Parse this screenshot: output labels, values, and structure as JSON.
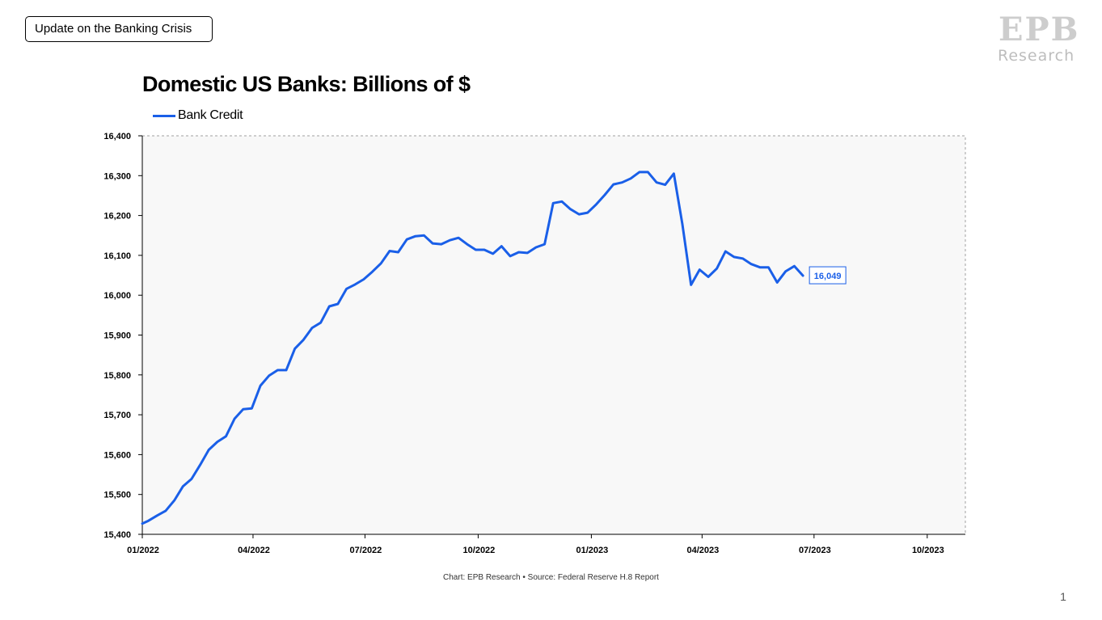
{
  "slide": {
    "deck_tag": "Update on the Banking Crisis",
    "logo_letters": [
      "E",
      "P",
      "B"
    ],
    "logo_word": "Research",
    "page_number": "1",
    "source_note": "Chart: EPB Research •  Source: Federal Reserve H.8 Report"
  },
  "colors": {
    "series": "#1a5fe8",
    "plot_background": "#f8f8f8",
    "logo": "#cdcdcd"
  },
  "chart_data": {
    "type": "line",
    "title": "Domestic US Banks: Billions of $",
    "xlabel": "",
    "ylabel": "",
    "ylim": [
      15400,
      16400
    ],
    "yticks": [
      15400,
      15500,
      15600,
      15700,
      15800,
      15900,
      16000,
      16100,
      16200,
      16300,
      16400
    ],
    "ytick_labels": [
      "15,400",
      "15,500",
      "15,600",
      "15,700",
      "15,800",
      "15,900",
      "16,000",
      "16,100",
      "16,200",
      "16,300",
      "16,400"
    ],
    "xlim": [
      "2022-01-01",
      "2023-11-01"
    ],
    "xticks": [
      "2022-01-01",
      "2022-04-01",
      "2022-07-01",
      "2022-10-01",
      "2023-01-01",
      "2023-04-01",
      "2023-07-01",
      "2023-10-01"
    ],
    "xtick_labels": [
      "01/2022",
      "04/2022",
      "07/2022",
      "10/2022",
      "01/2023",
      "04/2023",
      "07/2023",
      "10/2023"
    ],
    "grid": false,
    "legend_position": "top-left",
    "series": [
      {
        "name": "Bank Credit",
        "color": "#1a5fe8",
        "end_label": "16,049",
        "points": [
          [
            "2022-01-01",
            15427
          ],
          [
            "2022-01-06",
            15434
          ],
          [
            "2022-01-13",
            15447
          ],
          [
            "2022-01-20",
            15459
          ],
          [
            "2022-01-27",
            15485
          ],
          [
            "2022-02-03",
            15520
          ],
          [
            "2022-02-10",
            15539
          ],
          [
            "2022-02-17",
            15574
          ],
          [
            "2022-02-24",
            15612
          ],
          [
            "2022-03-03",
            15632
          ],
          [
            "2022-03-10",
            15646
          ],
          [
            "2022-03-17",
            15690
          ],
          [
            "2022-03-24",
            15714
          ],
          [
            "2022-03-31",
            15716
          ],
          [
            "2022-04-07",
            15773
          ],
          [
            "2022-04-14",
            15798
          ],
          [
            "2022-04-21",
            15812
          ],
          [
            "2022-04-28",
            15812
          ],
          [
            "2022-05-05",
            15866
          ],
          [
            "2022-05-12",
            15888
          ],
          [
            "2022-05-19",
            15918
          ],
          [
            "2022-05-26",
            15931
          ],
          [
            "2022-06-02",
            15972
          ],
          [
            "2022-06-09",
            15978
          ],
          [
            "2022-06-16",
            16016
          ],
          [
            "2022-06-23",
            16027
          ],
          [
            "2022-06-30",
            16040
          ],
          [
            "2022-07-07",
            16059
          ],
          [
            "2022-07-14",
            16080
          ],
          [
            "2022-07-21",
            16111
          ],
          [
            "2022-07-28",
            16108
          ],
          [
            "2022-08-04",
            16140
          ],
          [
            "2022-08-11",
            16148
          ],
          [
            "2022-08-18",
            16150
          ],
          [
            "2022-08-25",
            16130
          ],
          [
            "2022-09-01",
            16128
          ],
          [
            "2022-09-08",
            16138
          ],
          [
            "2022-09-15",
            16144
          ],
          [
            "2022-09-22",
            16128
          ],
          [
            "2022-09-29",
            16114
          ],
          [
            "2022-10-06",
            16114
          ],
          [
            "2022-10-13",
            16104
          ],
          [
            "2022-10-20",
            16123
          ],
          [
            "2022-10-27",
            16098
          ],
          [
            "2022-11-03",
            16108
          ],
          [
            "2022-11-10",
            16106
          ],
          [
            "2022-11-17",
            16120
          ],
          [
            "2022-11-24",
            16128
          ],
          [
            "2022-12-01",
            16231
          ],
          [
            "2022-12-08",
            16235
          ],
          [
            "2022-12-15",
            16216
          ],
          [
            "2022-12-22",
            16203
          ],
          [
            "2022-12-29",
            16207
          ],
          [
            "2023-01-05",
            16228
          ],
          [
            "2023-01-12",
            16252
          ],
          [
            "2023-01-19",
            16278
          ],
          [
            "2023-01-26",
            16283
          ],
          [
            "2023-02-02",
            16293
          ],
          [
            "2023-02-09",
            16309
          ],
          [
            "2023-02-16",
            16309
          ],
          [
            "2023-02-23",
            16283
          ],
          [
            "2023-03-02",
            16277
          ],
          [
            "2023-03-09",
            16305
          ],
          [
            "2023-03-16",
            16178
          ],
          [
            "2023-03-23",
            16026
          ],
          [
            "2023-03-30",
            16064
          ],
          [
            "2023-04-06",
            16046
          ],
          [
            "2023-04-13",
            16067
          ],
          [
            "2023-04-20",
            16110
          ],
          [
            "2023-04-27",
            16096
          ],
          [
            "2023-05-04",
            16092
          ],
          [
            "2023-05-11",
            16078
          ],
          [
            "2023-05-18",
            16070
          ],
          [
            "2023-05-25",
            16070
          ],
          [
            "2023-06-01",
            16032
          ],
          [
            "2023-06-08",
            16060
          ],
          [
            "2023-06-15",
            16073
          ],
          [
            "2023-06-22",
            16049
          ]
        ]
      }
    ]
  }
}
